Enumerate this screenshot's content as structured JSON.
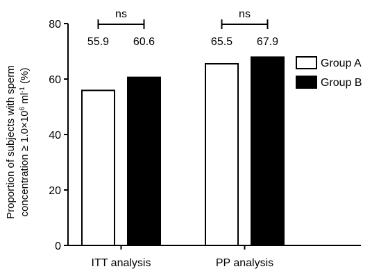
{
  "chart_data": {
    "type": "bar",
    "categories": [
      "ITT analysis",
      "PP analysis"
    ],
    "series": [
      {
        "name": "Group A",
        "values": [
          55.9,
          65.5
        ],
        "color": "#ffffff"
      },
      {
        "name": "Group B",
        "values": [
          60.6,
          67.9
        ],
        "color": "#000000"
      }
    ],
    "value_labels": [
      [
        "55.9",
        "60.6"
      ],
      [
        "65.5",
        "67.9"
      ]
    ],
    "significance": [
      "ns",
      "ns"
    ],
    "ylabel_line1": "Proportion of subjects with sperm",
    "ylabel_line2_prefix": "concentration ≥ 1.0×10",
    "ylabel_sup1": "6",
    "ylabel_mid": " ml",
    "ylabel_sup2": "-1",
    "ylabel_suffix": " (%)",
    "yticks": [
      0,
      20,
      40,
      60,
      80
    ],
    "ylim": [
      0,
      80
    ],
    "legend_position": "right",
    "grid": false
  }
}
